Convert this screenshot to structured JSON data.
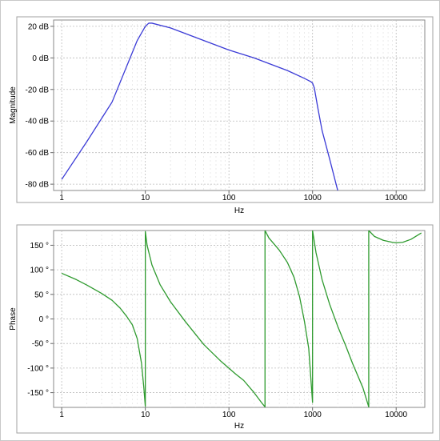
{
  "chart_data": [
    {
      "type": "line",
      "ylabel": "Magnitude",
      "xlabel": "Hz",
      "x_scale": "log",
      "xlim": [
        0.8,
        22000
      ],
      "ylim": [
        -84,
        24
      ],
      "x_ticks": [
        1,
        10,
        100,
        1000,
        10000
      ],
      "x_tick_labels": [
        "1",
        "10",
        "100",
        "1000",
        "10000"
      ],
      "y_ticks": [
        20,
        0,
        -20,
        -40,
        -60,
        -80
      ],
      "y_tick_labels": [
        "20 dB",
        "0 dB",
        "-20 dB",
        "-40 dB",
        "-60 dB",
        "-80 dB"
      ],
      "grid": true,
      "series": [
        {
          "color": "#3a3ad6",
          "x": [
            1,
            2,
            4,
            8,
            10,
            11,
            12,
            20,
            50,
            100,
            200,
            500,
            800,
            950,
            1000,
            1050,
            1150,
            1300,
            1600,
            2000
          ],
          "y": [
            -77,
            -53,
            -28,
            11,
            20,
            22,
            22,
            19,
            11,
            5,
            0,
            -8,
            -13,
            -15,
            -16,
            -19,
            -31,
            -46,
            -64,
            -84
          ]
        }
      ]
    },
    {
      "type": "line",
      "ylabel": "Phase",
      "xlabel": "Hz",
      "x_scale": "log",
      "xlim": [
        0.8,
        22000
      ],
      "ylim": [
        -180,
        180
      ],
      "x_ticks": [
        1,
        10,
        100,
        1000,
        10000
      ],
      "x_tick_labels": [
        "1",
        "10",
        "100",
        "1000",
        "10000"
      ],
      "y_ticks": [
        150,
        100,
        50,
        0,
        -50,
        -100,
        -150
      ],
      "y_tick_labels": [
        "150 °",
        "100 °",
        "50 °",
        "0 °",
        "-50 °",
        "-100 °",
        "-150 °"
      ],
      "grid": true,
      "series": [
        {
          "color": "#2e9a2e",
          "x": [
            1,
            1.5,
            2,
            3,
            4,
            5,
            6,
            7,
            8,
            9,
            9.6,
            10,
            10,
            10.5,
            12,
            15,
            20,
            30,
            50,
            80,
            120,
            150,
            200,
            250,
            270,
            270,
            300,
            400,
            500,
            600,
            700,
            800,
            900,
            1000,
            1000,
            1100,
            1300,
            1600,
            2000,
            2500,
            3000,
            4000,
            4700,
            4700,
            5500,
            7000,
            9000,
            10000,
            12000,
            15000,
            20000
          ],
          "y": [
            93,
            80,
            69,
            52,
            38,
            22,
            5,
            -12,
            -40,
            -90,
            -140,
            -178,
            178,
            150,
            110,
            70,
            35,
            -5,
            -52,
            -86,
            -112,
            -125,
            -150,
            -172,
            -179,
            180,
            165,
            140,
            115,
            85,
            45,
            -5,
            -60,
            -170,
            180,
            135,
            80,
            30,
            -15,
            -55,
            -90,
            -140,
            -179,
            180,
            168,
            160,
            156,
            155,
            156,
            162,
            175
          ]
        }
      ]
    }
  ]
}
